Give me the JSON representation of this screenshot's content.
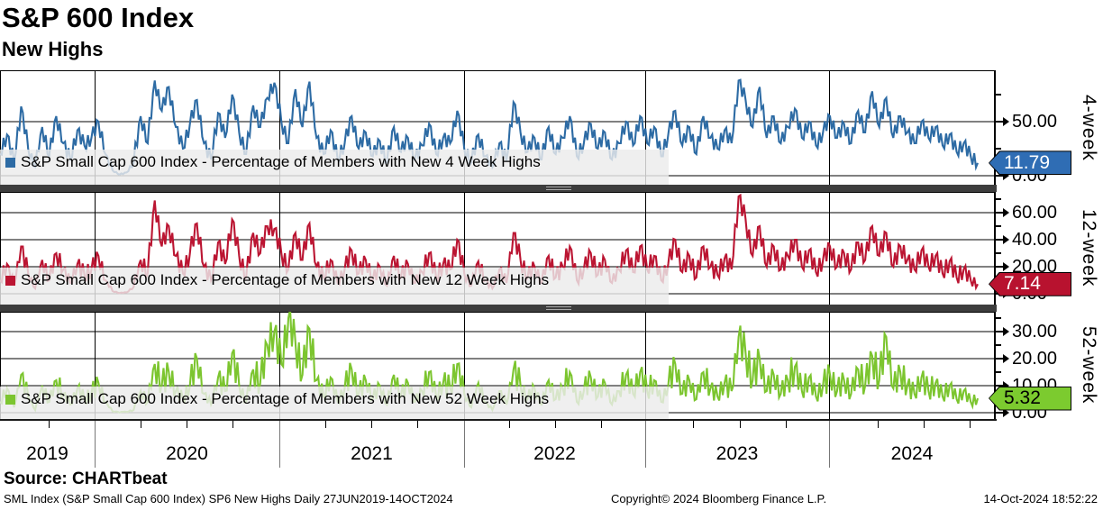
{
  "header": {
    "title": "S&P 600 Index",
    "subtitle": "New Highs"
  },
  "source_line": "Source: CHARTbeat",
  "footer": {
    "left": "SML Index (S&P Small Cap 600 Index) SP6 New Highs  Daily 27JUN2019-14OCT2024",
    "center": "Copyright© 2024 Bloomberg Finance L.P.",
    "right": "14-Oct-2024 18:52:22"
  },
  "x_axis": {
    "years": [
      "2019",
      "2020",
      "2021",
      "2022",
      "2023",
      "2024"
    ],
    "start_label": "27JUN2019",
    "end_label": "14OCT2024"
  },
  "chart_data": [
    {
      "type": "line",
      "name": "4-week",
      "legend": "S&P Small Cap 600 Index - Percentage of Members with New 4 Week Highs",
      "color": "#2d6ba4",
      "tag_color": "#2f6db4",
      "tag_text_color": "#ffffff",
      "last_label": "11.79",
      "last_value": 11.79,
      "ylim": [
        0,
        97
      ],
      "major_ticks": [
        {
          "v": 50,
          "label": "50.00"
        },
        {
          "v": 0,
          "label": "0.00"
        }
      ],
      "minor_ticks": [
        25,
        75
      ],
      "x_start": 2019.49,
      "x_end": 2024.79,
      "values": [
        20,
        38,
        12,
        64,
        25,
        8,
        45,
        18,
        55,
        30,
        15,
        42,
        28,
        35,
        50,
        20,
        5,
        1,
        3,
        12,
        55,
        30,
        88,
        60,
        82,
        45,
        25,
        48,
        70,
        30,
        15,
        58,
        35,
        75,
        40,
        20,
        65,
        45,
        72,
        86,
        50,
        30,
        80,
        45,
        87,
        35,
        20,
        42,
        15,
        30,
        55,
        25,
        40,
        18,
        32,
        12,
        45,
        22,
        35,
        15,
        28,
        48,
        20,
        35,
        30,
        60,
        25,
        12,
        38,
        18,
        8,
        30,
        14,
        68,
        40,
        22,
        35,
        15,
        45,
        20,
        35,
        55,
        18,
        30,
        48,
        25,
        40,
        15,
        30,
        50,
        28,
        55,
        30,
        45,
        18,
        38,
        60,
        28,
        45,
        20,
        55,
        35,
        25,
        42,
        30,
        88,
        70,
        45,
        82,
        35,
        55,
        30,
        45,
        62,
        35,
        50,
        28,
        40,
        55,
        35,
        48,
        30,
        60,
        40,
        78,
        45,
        72,
        35,
        55,
        40,
        30,
        50,
        35,
        45,
        28,
        38,
        22,
        30,
        18,
        11.79
      ]
    },
    {
      "type": "line",
      "name": "12-week",
      "legend": "S&P Small Cap 600 Index - Percentage of Members with New 12 Week Highs",
      "color": "#bb1532",
      "tag_color": "#b8122f",
      "tag_text_color": "#ffffff",
      "last_label": "7.14",
      "last_value": 7.14,
      "ylim": [
        0,
        74
      ],
      "major_ticks": [
        {
          "v": 60,
          "label": "60.00"
        },
        {
          "v": 40,
          "label": "40.00"
        },
        {
          "v": 20,
          "label": "20.00"
        },
        {
          "v": 0,
          "label": "0.00"
        }
      ],
      "minor_ticks": [
        10,
        30,
        50,
        70
      ],
      "x_start": 2019.49,
      "x_end": 2024.79,
      "values": [
        10,
        22,
        6,
        35,
        15,
        4,
        25,
        10,
        30,
        18,
        8,
        22,
        14,
        18,
        28,
        10,
        2,
        0.5,
        1,
        5,
        25,
        15,
        69,
        35,
        50,
        28,
        15,
        30,
        52,
        20,
        10,
        38,
        22,
        55,
        28,
        12,
        45,
        30,
        50,
        48,
        30,
        18,
        45,
        25,
        52,
        20,
        12,
        25,
        8,
        18,
        32,
        15,
        25,
        10,
        20,
        6,
        28,
        12,
        22,
        8,
        16,
        30,
        12,
        22,
        18,
        40,
        15,
        6,
        24,
        10,
        4,
        18,
        8,
        45,
        25,
        12,
        20,
        8,
        28,
        12,
        20,
        35,
        10,
        18,
        30,
        14,
        25,
        8,
        18,
        32,
        16,
        35,
        18,
        28,
        10,
        22,
        40,
        16,
        28,
        12,
        35,
        20,
        14,
        26,
        18,
        72,
        55,
        28,
        50,
        20,
        35,
        18,
        28,
        40,
        20,
        32,
        16,
        25,
        35,
        20,
        30,
        18,
        38,
        25,
        50,
        28,
        45,
        20,
        35,
        25,
        18,
        32,
        20,
        28,
        15,
        24,
        12,
        18,
        10,
        7.14
      ]
    },
    {
      "type": "line",
      "name": "52-week",
      "legend": "S&P Small Cap 600 Index - Percentage of Members with New 52 Week Highs",
      "color": "#7cc52f",
      "tag_color": "#7ccb2f",
      "tag_text_color": "#000000",
      "last_label": "5.32",
      "last_value": 5.32,
      "ylim": [
        0,
        37
      ],
      "major_ticks": [
        {
          "v": 30,
          "label": "30.00"
        },
        {
          "v": 20,
          "label": "20.00"
        },
        {
          "v": 10,
          "label": "10.00"
        },
        {
          "v": 0,
          "label": "0.00"
        }
      ],
      "minor_ticks": [
        5,
        15,
        25,
        35
      ],
      "x_start": 2019.49,
      "x_end": 2024.79,
      "values": [
        4,
        9,
        2,
        14,
        6,
        1,
        10,
        4,
        12,
        7,
        3,
        9,
        5,
        7,
        11,
        4,
        0.5,
        0,
        0.3,
        1,
        8,
        4,
        18,
        10,
        15,
        8,
        5,
        10,
        20,
        7,
        3,
        13,
        8,
        22,
        10,
        4,
        16,
        11,
        25,
        30,
        18,
        35,
        26,
        14,
        31,
        12,
        6,
        13,
        4,
        9,
        16,
        7,
        12,
        5,
        10,
        3,
        14,
        6,
        11,
        4,
        8,
        15,
        6,
        11,
        9,
        18,
        7,
        2,
        11,
        4,
        1,
        8,
        3,
        16,
        10,
        5,
        9,
        3,
        12,
        5,
        9,
        15,
        4,
        8,
        13,
        6,
        11,
        3,
        8,
        14,
        7,
        15,
        8,
        12,
        4,
        10,
        18,
        7,
        12,
        5,
        15,
        9,
        6,
        11,
        8,
        28,
        22,
        12,
        20,
        8,
        14,
        7,
        12,
        17,
        8,
        13,
        6,
        10,
        14,
        8,
        12,
        7,
        16,
        10,
        21,
        12,
        28,
        9,
        15,
        10,
        7,
        13,
        8,
        11,
        6,
        10,
        5,
        8,
        4,
        5.32
      ]
    }
  ]
}
